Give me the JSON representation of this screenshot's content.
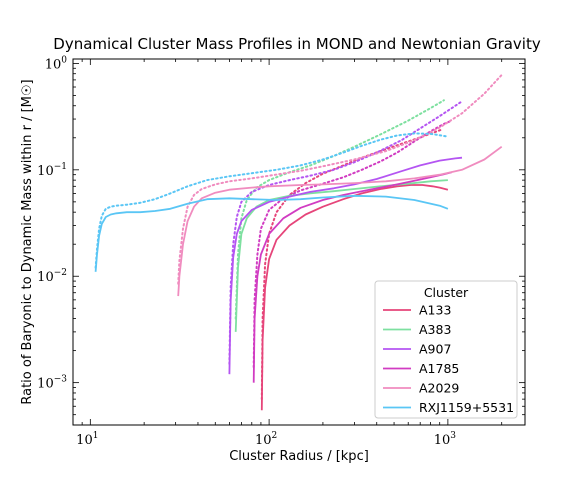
{
  "chart_data": {
    "type": "line",
    "title": "Dynamical Cluster Mass Profiles in MOND and Newtonian Gravity",
    "xlabel": "Cluster Radius / [kpc]",
    "ylabel": "Ratio of Baryonic to Dynamic Mass within r / [M☉]",
    "xscale": "log",
    "yscale": "log",
    "xlim": [
      8,
      2700
    ],
    "ylim": [
      0.0004,
      1.1
    ],
    "grid": false,
    "x_ticks": [
      {
        "value": 10,
        "base": "10",
        "exp": "1"
      },
      {
        "value": 100,
        "base": "10",
        "exp": "2"
      },
      {
        "value": 1000,
        "base": "10",
        "exp": "3"
      }
    ],
    "y_ticks": [
      {
        "value": 0.001,
        "base": "10",
        "exp": "−3"
      },
      {
        "value": 0.01,
        "base": "10",
        "exp": "−2"
      },
      {
        "value": 0.1,
        "base": "10",
        "exp": "−1"
      },
      {
        "value": 1,
        "base": "10",
        "exp": "0"
      }
    ],
    "legend": {
      "title": "Cluster",
      "placement": "lower right"
    },
    "series": [
      {
        "name": "A133",
        "color": "#e6457a",
        "solid": {
          "x": [
            91,
            92,
            95,
            100,
            110,
            130,
            160,
            200,
            260,
            330,
            420,
            520,
            620,
            720,
            820,
            900,
            1000
          ],
          "y": [
            0.00055,
            0.0025,
            0.0078,
            0.0145,
            0.022,
            0.03,
            0.038,
            0.045,
            0.053,
            0.06,
            0.066,
            0.07,
            0.072,
            0.072,
            0.07,
            0.068,
            0.065
          ]
        },
        "dotted": {
          "x": [
            91,
            92,
            95,
            100,
            110,
            130,
            160,
            200,
            260,
            330,
            420,
            520,
            620,
            720,
            820,
            920
          ],
          "y": [
            0.0007,
            0.004,
            0.013,
            0.025,
            0.04,
            0.058,
            0.075,
            0.092,
            0.11,
            0.13,
            0.15,
            0.17,
            0.188,
            0.205,
            0.222,
            0.238
          ]
        }
      },
      {
        "name": "A383",
        "color": "#7ee0a0",
        "solid": {
          "x": [
            65,
            67,
            70,
            75,
            85,
            100,
            130,
            170,
            230,
            300,
            420,
            600,
            800,
            1000
          ],
          "y": [
            0.003,
            0.012,
            0.025,
            0.035,
            0.045,
            0.052,
            0.057,
            0.06,
            0.063,
            0.066,
            0.07,
            0.074,
            0.078,
            0.08
          ]
        },
        "dotted": {
          "x": [
            65,
            67,
            70,
            75,
            85,
            100,
            130,
            170,
            230,
            300,
            420,
            600,
            800,
            950
          ],
          "y": [
            0.004,
            0.016,
            0.035,
            0.052,
            0.068,
            0.08,
            0.095,
            0.11,
            0.135,
            0.165,
            0.215,
            0.29,
            0.38,
            0.45
          ]
        }
      },
      {
        "name": "A907",
        "color": "#b455f2",
        "solid": {
          "x": [
            60,
            61,
            63,
            66,
            70,
            80,
            100,
            130,
            170,
            230,
            300,
            400,
            550,
            700,
            900,
            1100,
            1200
          ],
          "y": [
            0.0012,
            0.006,
            0.015,
            0.025,
            0.033,
            0.042,
            0.05,
            0.056,
            0.062,
            0.067,
            0.073,
            0.082,
            0.097,
            0.11,
            0.122,
            0.128,
            0.13
          ]
        },
        "dotted": {
          "x": [
            60,
            61,
            63,
            66,
            70,
            80,
            100,
            130,
            170,
            230,
            300,
            400,
            550,
            700,
            900,
            1100,
            1200
          ],
          "y": [
            0.0015,
            0.008,
            0.02,
            0.036,
            0.05,
            0.062,
            0.072,
            0.08,
            0.088,
            0.1,
            0.118,
            0.145,
            0.19,
            0.245,
            0.32,
            0.4,
            0.44
          ]
        }
      },
      {
        "name": "A1785",
        "color": "#d13cc2",
        "solid": {
          "x": [
            82,
            83,
            86,
            90,
            100,
            120,
            150,
            200,
            260,
            330,
            420,
            520,
            650,
            800,
            950,
            1050
          ],
          "y": [
            0.001,
            0.004,
            0.01,
            0.016,
            0.025,
            0.035,
            0.044,
            0.052,
            0.058,
            0.063,
            0.068,
            0.073,
            0.079,
            0.085,
            0.091,
            0.095
          ]
        },
        "dotted": {
          "x": [
            82,
            83,
            86,
            90,
            100,
            120,
            150,
            200,
            260,
            330,
            420,
            520,
            650,
            800,
            950,
            1050
          ],
          "y": [
            0.0014,
            0.006,
            0.016,
            0.028,
            0.042,
            0.054,
            0.064,
            0.074,
            0.085,
            0.1,
            0.12,
            0.145,
            0.185,
            0.23,
            0.27,
            0.29
          ]
        }
      },
      {
        "name": "A2029",
        "color": "#f08cbf",
        "solid": {
          "x": [
            31,
            31.5,
            33,
            35,
            38,
            42,
            50,
            60,
            80,
            100,
            150,
            200,
            300,
            450,
            650,
            900,
            1200,
            1600,
            2000
          ],
          "y": [
            0.0065,
            0.01,
            0.02,
            0.033,
            0.045,
            0.054,
            0.061,
            0.065,
            0.068,
            0.07,
            0.072,
            0.073,
            0.075,
            0.078,
            0.083,
            0.09,
            0.1,
            0.125,
            0.165
          ]
        },
        "dotted": {
          "x": [
            31,
            31.5,
            33,
            35,
            38,
            42,
            50,
            60,
            80,
            100,
            150,
            200,
            300,
            450,
            650,
            900,
            1200,
            1600,
            2000
          ],
          "y": [
            0.0085,
            0.014,
            0.028,
            0.045,
            0.058,
            0.066,
            0.073,
            0.078,
            0.083,
            0.088,
            0.098,
            0.108,
            0.125,
            0.15,
            0.19,
            0.25,
            0.34,
            0.52,
            0.78
          ]
        }
      },
      {
        "name": "RXJ1159+5531",
        "color": "#5ac6f5",
        "solid": {
          "x": [
            10.7,
            10.9,
            11.2,
            11.6,
            12.2,
            13,
            14,
            16,
            19,
            23,
            28,
            35,
            45,
            60,
            80,
            110,
            150,
            200,
            300,
            450,
            650,
            900,
            1000
          ],
          "y": [
            0.011,
            0.016,
            0.024,
            0.031,
            0.036,
            0.038,
            0.039,
            0.04,
            0.04,
            0.041,
            0.043,
            0.048,
            0.053,
            0.054,
            0.053,
            0.052,
            0.053,
            0.055,
            0.057,
            0.056,
            0.052,
            0.046,
            0.043
          ]
        },
        "dotted": {
          "x": [
            10.7,
            10.9,
            11.2,
            11.6,
            12.2,
            13,
            14,
            16,
            19,
            23,
            28,
            35,
            45,
            60,
            80,
            110,
            150,
            200,
            260,
            330,
            420,
            520,
            650,
            800,
            1000
          ],
          "y": [
            0.012,
            0.018,
            0.028,
            0.037,
            0.043,
            0.045,
            0.046,
            0.047,
            0.049,
            0.053,
            0.06,
            0.07,
            0.08,
            0.087,
            0.093,
            0.1,
            0.11,
            0.125,
            0.145,
            0.168,
            0.192,
            0.21,
            0.22,
            0.218,
            0.205
          ]
        }
      }
    ]
  }
}
